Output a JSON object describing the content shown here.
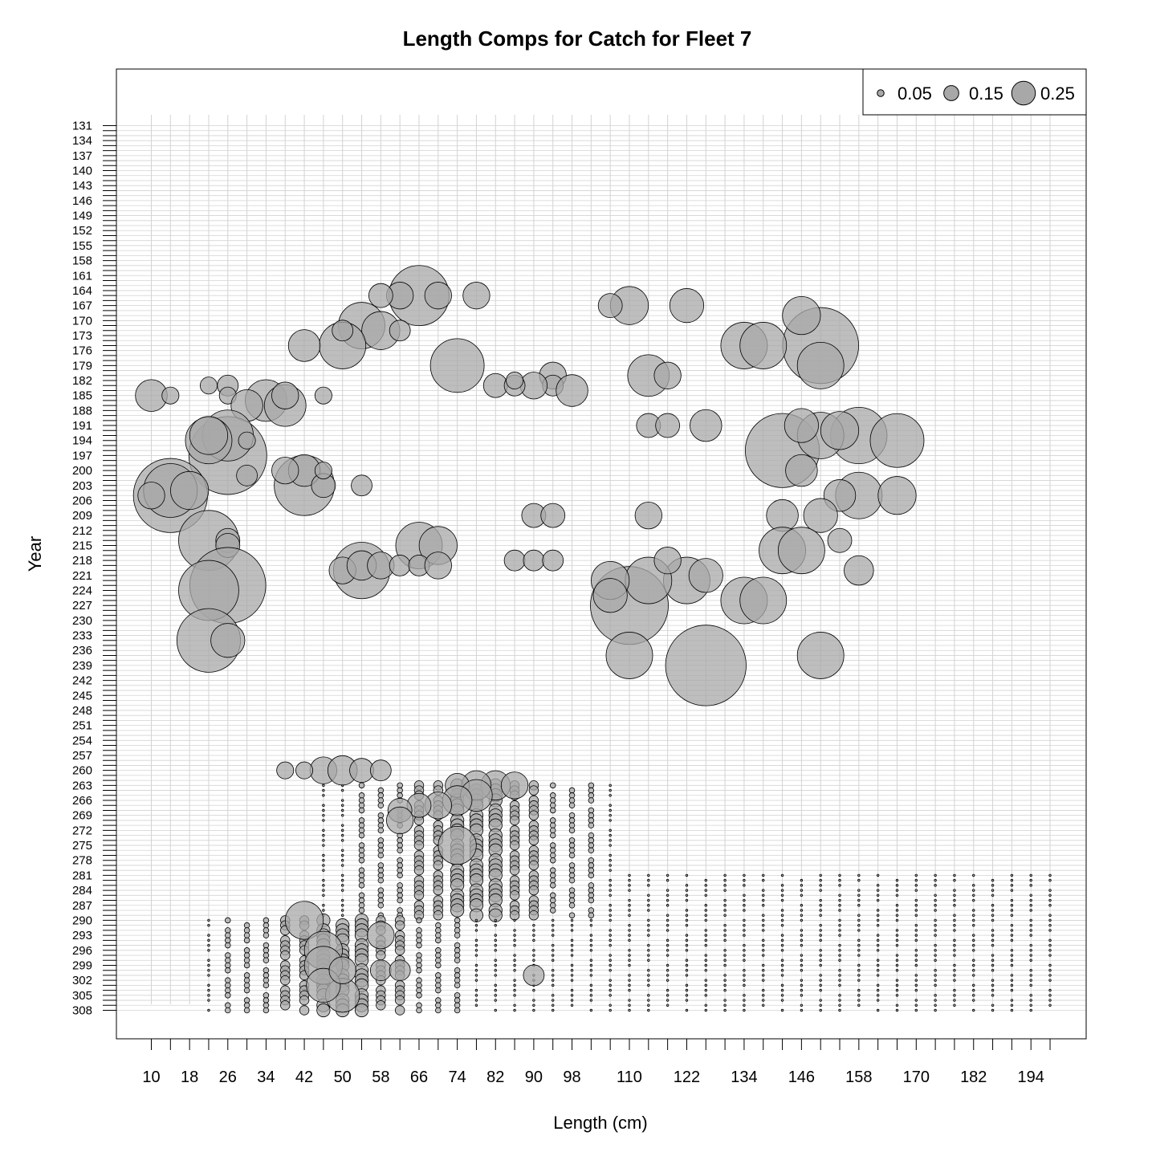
{
  "chart_data": {
    "type": "scatter",
    "subtype": "bubble",
    "title": "Length Comps for Catch for Fleet 7",
    "xlabel": "Length (cm)",
    "ylabel": "Year",
    "x_tick_labels": [
      "10",
      "18",
      "26",
      "34",
      "42",
      "50",
      "58",
      "66",
      "74",
      "82",
      "90",
      "98",
      "110",
      "122",
      "134",
      "146",
      "158",
      "170",
      "182",
      "194"
    ],
    "y_tick_labels": [
      "131",
      "134",
      "137",
      "140",
      "143",
      "146",
      "149",
      "152",
      "155",
      "158",
      "161",
      "164",
      "167",
      "170",
      "173",
      "176",
      "179",
      "182",
      "185",
      "188",
      "191",
      "194",
      "197",
      "200",
      "203",
      "206",
      "209",
      "212",
      "215",
      "218",
      "221",
      "224",
      "227",
      "230",
      "233",
      "236",
      "239",
      "242",
      "245",
      "248",
      "251",
      "254",
      "257",
      "260",
      "263",
      "266",
      "269",
      "272",
      "275",
      "278",
      "281",
      "284",
      "287",
      "290",
      "293",
      "296",
      "299",
      "302",
      "305",
      "308"
    ],
    "x_bins": [
      10,
      14,
      18,
      22,
      26,
      30,
      34,
      38,
      42,
      46,
      50,
      54,
      58,
      62,
      66,
      70,
      74,
      78,
      82,
      86,
      90,
      94,
      98,
      102,
      106,
      110,
      114,
      118,
      122,
      126,
      130,
      134,
      138,
      142,
      146,
      150,
      154,
      158,
      162,
      166,
      170,
      174,
      178,
      182,
      186,
      190,
      194,
      198
    ],
    "ylim": [
      129,
      313
    ],
    "y_reversed": true,
    "grid": true,
    "legend": {
      "position": "top-right",
      "sizes": [
        0.05,
        0.15,
        0.25
      ],
      "labels": [
        "0.05",
        "0.15",
        "0.25"
      ]
    },
    "colors": {
      "fill": "#a8a8a8",
      "stroke": "#000000",
      "grid": "#d3d3d3"
    },
    "points": [
      {
        "x": 66,
        "y": 165,
        "v": 0.25
      },
      {
        "x": 62,
        "y": 165,
        "v": 0.05
      },
      {
        "x": 58,
        "y": 165,
        "v": 0.04
      },
      {
        "x": 70,
        "y": 165,
        "v": 0.05
      },
      {
        "x": 78,
        "y": 165,
        "v": 0.05
      },
      {
        "x": 54,
        "y": 171,
        "v": 0.15
      },
      {
        "x": 58,
        "y": 172,
        "v": 0.1
      },
      {
        "x": 50,
        "y": 175,
        "v": 0.15
      },
      {
        "x": 50,
        "y": 172,
        "v": 0.03
      },
      {
        "x": 42,
        "y": 175,
        "v": 0.07
      },
      {
        "x": 62,
        "y": 172,
        "v": 0.03
      },
      {
        "x": 74,
        "y": 179,
        "v": 0.2
      },
      {
        "x": 94,
        "y": 181,
        "v": 0.05
      },
      {
        "x": 94,
        "y": 183,
        "v": 0.03
      },
      {
        "x": 98,
        "y": 184,
        "v": 0.07
      },
      {
        "x": 90,
        "y": 183,
        "v": 0.05
      },
      {
        "x": 82,
        "y": 183,
        "v": 0.04
      },
      {
        "x": 86,
        "y": 183,
        "v": 0.03
      },
      {
        "x": 86,
        "y": 182,
        "v": 0.02
      },
      {
        "x": 110,
        "y": 167,
        "v": 0.1
      },
      {
        "x": 106,
        "y": 167,
        "v": 0.04
      },
      {
        "x": 122,
        "y": 167,
        "v": 0.08
      },
      {
        "x": 114,
        "y": 181,
        "v": 0.12
      },
      {
        "x": 118,
        "y": 181,
        "v": 0.05
      },
      {
        "x": 10,
        "y": 185,
        "v": 0.07
      },
      {
        "x": 14,
        "y": 185,
        "v": 0.02
      },
      {
        "x": 26,
        "y": 183,
        "v": 0.03
      },
      {
        "x": 26,
        "y": 185,
        "v": 0.02
      },
      {
        "x": 22,
        "y": 183,
        "v": 0.02
      },
      {
        "x": 34,
        "y": 186,
        "v": 0.12
      },
      {
        "x": 30,
        "y": 187,
        "v": 0.07
      },
      {
        "x": 38,
        "y": 187,
        "v": 0.12
      },
      {
        "x": 38,
        "y": 185,
        "v": 0.05
      },
      {
        "x": 46,
        "y": 185,
        "v": 0.02
      },
      {
        "x": 26,
        "y": 197,
        "v": 0.42
      },
      {
        "x": 26,
        "y": 193,
        "v": 0.18
      },
      {
        "x": 22,
        "y": 194,
        "v": 0.15
      },
      {
        "x": 22,
        "y": 193,
        "v": 0.1
      },
      {
        "x": 30,
        "y": 194,
        "v": 0.02
      },
      {
        "x": 14,
        "y": 205,
        "v": 0.38
      },
      {
        "x": 14,
        "y": 204,
        "v": 0.2
      },
      {
        "x": 18,
        "y": 204,
        "v": 0.1
      },
      {
        "x": 10,
        "y": 205,
        "v": 0.05
      },
      {
        "x": 30,
        "y": 201,
        "v": 0.03
      },
      {
        "x": 42,
        "y": 203,
        "v": 0.25
      },
      {
        "x": 42,
        "y": 200,
        "v": 0.07
      },
      {
        "x": 46,
        "y": 203,
        "v": 0.04
      },
      {
        "x": 46,
        "y": 200,
        "v": 0.02
      },
      {
        "x": 38,
        "y": 200,
        "v": 0.05
      },
      {
        "x": 54,
        "y": 203,
        "v": 0.03
      },
      {
        "x": 22,
        "y": 214,
        "v": 0.25
      },
      {
        "x": 26,
        "y": 214,
        "v": 0.04
      },
      {
        "x": 26,
        "y": 215,
        "v": 0.04
      },
      {
        "x": 26,
        "y": 223,
        "v": 0.4
      },
      {
        "x": 22,
        "y": 224,
        "v": 0.25
      },
      {
        "x": 22,
        "y": 234,
        "v": 0.28
      },
      {
        "x": 26,
        "y": 234,
        "v": 0.08
      },
      {
        "x": 54,
        "y": 220,
        "v": 0.22
      },
      {
        "x": 50,
        "y": 220,
        "v": 0.05
      },
      {
        "x": 54,
        "y": 219,
        "v": 0.06
      },
      {
        "x": 58,
        "y": 219,
        "v": 0.05
      },
      {
        "x": 66,
        "y": 215,
        "v": 0.15
      },
      {
        "x": 70,
        "y": 215,
        "v": 0.1
      },
      {
        "x": 62,
        "y": 219,
        "v": 0.03
      },
      {
        "x": 66,
        "y": 219,
        "v": 0.03
      },
      {
        "x": 70,
        "y": 219,
        "v": 0.05
      },
      {
        "x": 86,
        "y": 218,
        "v": 0.03
      },
      {
        "x": 90,
        "y": 218,
        "v": 0.03
      },
      {
        "x": 94,
        "y": 218,
        "v": 0.03
      },
      {
        "x": 90,
        "y": 209,
        "v": 0.04
      },
      {
        "x": 94,
        "y": 209,
        "v": 0.04
      },
      {
        "x": 114,
        "y": 209,
        "v": 0.05
      },
      {
        "x": 114,
        "y": 191,
        "v": 0.04
      },
      {
        "x": 118,
        "y": 191,
        "v": 0.04
      },
      {
        "x": 126,
        "y": 191,
        "v": 0.07
      },
      {
        "x": 150,
        "y": 175,
        "v": 0.4
      },
      {
        "x": 150,
        "y": 179,
        "v": 0.15
      },
      {
        "x": 134,
        "y": 175,
        "v": 0.15
      },
      {
        "x": 138,
        "y": 175,
        "v": 0.15
      },
      {
        "x": 146,
        "y": 169,
        "v": 0.1
      },
      {
        "x": 142,
        "y": 196,
        "v": 0.38
      },
      {
        "x": 158,
        "y": 193,
        "v": 0.22
      },
      {
        "x": 166,
        "y": 194,
        "v": 0.2
      },
      {
        "x": 150,
        "y": 193,
        "v": 0.15
      },
      {
        "x": 146,
        "y": 191,
        "v": 0.08
      },
      {
        "x": 154,
        "y": 192,
        "v": 0.1
      },
      {
        "x": 158,
        "y": 205,
        "v": 0.15
      },
      {
        "x": 166,
        "y": 205,
        "v": 0.1
      },
      {
        "x": 154,
        "y": 205,
        "v": 0.07
      },
      {
        "x": 146,
        "y": 200,
        "v": 0.07
      },
      {
        "x": 142,
        "y": 209,
        "v": 0.07
      },
      {
        "x": 150,
        "y": 209,
        "v": 0.08
      },
      {
        "x": 142,
        "y": 216,
        "v": 0.15
      },
      {
        "x": 146,
        "y": 216,
        "v": 0.15
      },
      {
        "x": 154,
        "y": 214,
        "v": 0.04
      },
      {
        "x": 158,
        "y": 220,
        "v": 0.06
      },
      {
        "x": 110,
        "y": 227,
        "v": 0.42
      },
      {
        "x": 110,
        "y": 237,
        "v": 0.15
      },
      {
        "x": 126,
        "y": 239,
        "v": 0.45
      },
      {
        "x": 122,
        "y": 222,
        "v": 0.15
      },
      {
        "x": 114,
        "y": 222,
        "v": 0.15
      },
      {
        "x": 106,
        "y": 222,
        "v": 0.1
      },
      {
        "x": 106,
        "y": 225,
        "v": 0.08
      },
      {
        "x": 126,
        "y": 221,
        "v": 0.08
      },
      {
        "x": 118,
        "y": 218,
        "v": 0.05
      },
      {
        "x": 150,
        "y": 237,
        "v": 0.15
      },
      {
        "x": 134,
        "y": 226,
        "v": 0.15
      },
      {
        "x": 138,
        "y": 226,
        "v": 0.15
      },
      {
        "x": 46,
        "y": 260,
        "v": 0.05
      },
      {
        "x": 50,
        "y": 260,
        "v": 0.06
      },
      {
        "x": 54,
        "y": 260,
        "v": 0.04
      },
      {
        "x": 58,
        "y": 260,
        "v": 0.03
      },
      {
        "x": 42,
        "y": 260,
        "v": 0.02
      },
      {
        "x": 38,
        "y": 260,
        "v": 0.02
      },
      {
        "x": 82,
        "y": 263,
        "v": 0.06
      },
      {
        "x": 78,
        "y": 263,
        "v": 0.06
      },
      {
        "x": 86,
        "y": 263,
        "v": 0.05
      },
      {
        "x": 74,
        "y": 263,
        "v": 0.04
      },
      {
        "x": 78,
        "y": 265,
        "v": 0.07
      },
      {
        "x": 74,
        "y": 266,
        "v": 0.06
      },
      {
        "x": 70,
        "y": 267,
        "v": 0.05
      },
      {
        "x": 66,
        "y": 267,
        "v": 0.04
      },
      {
        "x": 62,
        "y": 268,
        "v": 0.04
      },
      {
        "x": 62,
        "y": 270,
        "v": 0.05
      },
      {
        "x": 74,
        "y": 275,
        "v": 0.1
      },
      {
        "x": 42,
        "y": 290,
        "v": 0.1
      },
      {
        "x": 46,
        "y": 296,
        "v": 0.1
      },
      {
        "x": 46,
        "y": 299,
        "v": 0.1
      },
      {
        "x": 50,
        "y": 305,
        "v": 0.08
      },
      {
        "x": 46,
        "y": 303,
        "v": 0.08
      },
      {
        "x": 58,
        "y": 293,
        "v": 0.05
      },
      {
        "x": 50,
        "y": 300,
        "v": 0.05
      },
      {
        "x": 58,
        "y": 300,
        "v": 0.03
      },
      {
        "x": 62,
        "y": 300,
        "v": 0.03
      },
      {
        "x": 90,
        "y": 301,
        "v": 0.03
      }
    ],
    "dense_block": {
      "description": "Many small bubbles from year 260 to 308 across lengths 22 to 198",
      "years": [
        260,
        308
      ],
      "lengths": [
        22,
        198
      ]
    }
  }
}
